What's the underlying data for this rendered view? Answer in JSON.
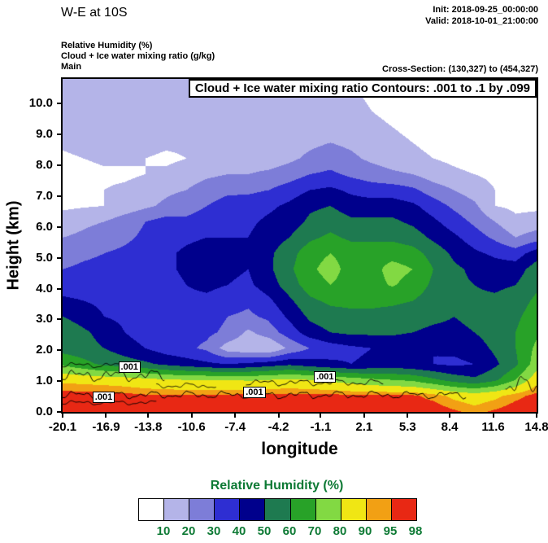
{
  "header": {
    "title": "W-E at 10S",
    "init": "Init: 2018-09-25_00:00:00",
    "valid": "Valid: 2018-10-01_21:00:00",
    "field_line1": "Relative Humidity  (%)",
    "field_line2": "Cloud + Ice water mixing ratio  (g/kg)",
    "field_line3": "Main",
    "cross_section": "Cross-Section: (130,327) to (454,327)"
  },
  "annotation": "Cloud + Ice water mixing ratio Contours: .001 to .1 by .099",
  "axes": {
    "ylabel": "Height (km)",
    "xlabel": "longitude",
    "yticks": [
      "0.0",
      "1.0",
      "2.0",
      "3.0",
      "4.0",
      "5.0",
      "6.0",
      "7.0",
      "8.0",
      "9.0",
      "10.0"
    ],
    "ytick_values": [
      0,
      1,
      2,
      3,
      4,
      5,
      6,
      7,
      8,
      9,
      10
    ],
    "ymax": 10.8,
    "xticks": [
      "-20.1",
      "-16.9",
      "-13.8",
      "-10.6",
      "-7.4",
      "-4.2",
      "-1.1",
      "2.1",
      "5.3",
      "8.4",
      "11.6",
      "14.8"
    ],
    "xtick_values": [
      -20.1,
      -16.9,
      -13.8,
      -10.6,
      -7.4,
      -4.2,
      -1.1,
      2.1,
      5.3,
      8.4,
      11.6,
      14.8
    ],
    "xmin": -20.1,
    "xmax": 14.8
  },
  "colorbar": {
    "title": "Relative Humidity  (%)",
    "labels": [
      "10",
      "20",
      "30",
      "40",
      "50",
      "60",
      "70",
      "80",
      "90",
      "95",
      "98"
    ],
    "colors": [
      "#ffffff",
      "#b4b4e8",
      "#7d7dd8",
      "#2e2ed2",
      "#00008c",
      "#1e7a50",
      "#28a228",
      "#82d943",
      "#f0e614",
      "#f2a014",
      "#e82814"
    ],
    "text_color": "#0e7a35"
  },
  "chart_data": {
    "type": "heatmap",
    "title": "W-E cross-section at 10S: Relative Humidity (%) shading with Cloud + Ice water mixing ratio contours .001 to .1 by .099 g/kg",
    "xlabel": "longitude",
    "ylabel": "Height (km)",
    "x": [
      -20.1,
      -18.58,
      -17.07,
      -15.55,
      -14.03,
      -12.52,
      -11.0,
      -9.49,
      -7.97,
      -6.45,
      -4.94,
      -3.42,
      -1.9,
      -0.39,
      1.13,
      2.64,
      4.16,
      5.68,
      7.19,
      8.71,
      10.23,
      11.74,
      13.26,
      14.8
    ],
    "heights_km": [
      0,
      0.51,
      1.03,
      1.54,
      2.06,
      2.57,
      3.09,
      3.6,
      4.11,
      4.63,
      5.14,
      5.66,
      6.17,
      6.69,
      7.2,
      7.71,
      8.23,
      8.74,
      9.26,
      9.77,
      10.29,
      10.8
    ],
    "rh_levels": [
      10,
      20,
      30,
      40,
      50,
      60,
      70,
      80,
      90,
      95,
      98
    ],
    "rh_colors": [
      "#ffffff",
      "#b4b4e8",
      "#7d7dd8",
      "#2e2ed2",
      "#00008c",
      "#1e7a50",
      "#28a228",
      "#82d943",
      "#f0e614",
      "#f2a014",
      "#e82814"
    ],
    "rh_percent": [
      [
        99,
        99,
        99,
        99,
        99,
        99,
        99,
        99,
        99,
        99,
        99,
        99,
        99,
        99,
        99,
        99,
        99,
        99,
        99,
        96,
        93,
        96,
        99,
        99
      ],
      [
        98,
        98,
        98,
        97,
        96,
        96,
        96,
        96,
        96,
        97,
        97,
        97,
        97,
        97,
        96,
        96,
        96,
        96,
        93,
        88,
        85,
        88,
        93,
        97
      ],
      [
        88,
        87,
        86,
        85,
        83,
        81,
        80,
        80,
        80,
        79,
        80,
        82,
        80,
        78,
        75,
        72,
        70,
        68,
        62,
        56,
        52,
        58,
        70,
        86
      ],
      [
        68,
        63,
        58,
        55,
        52,
        48,
        45,
        42,
        40,
        42,
        45,
        48,
        45,
        42,
        40,
        42,
        44,
        42,
        40,
        38,
        40,
        48,
        58,
        75
      ],
      [
        56,
        54,
        50,
        45,
        40,
        35,
        32,
        28,
        15,
        12,
        10,
        22,
        30,
        35,
        38,
        40,
        42,
        40,
        40,
        42,
        45,
        52,
        60,
        72
      ],
      [
        58,
        52,
        46,
        40,
        35,
        32,
        33,
        32,
        28,
        18,
        25,
        35,
        45,
        50,
        52,
        52,
        52,
        50,
        48,
        48,
        50,
        55,
        60,
        68
      ],
      [
        50,
        45,
        40,
        38,
        36,
        34,
        35,
        34,
        30,
        28,
        32,
        42,
        52,
        56,
        58,
        58,
        56,
        54,
        52,
        50,
        52,
        55,
        58,
        65
      ],
      [
        42,
        40,
        38,
        36,
        36,
        36,
        38,
        38,
        35,
        32,
        38,
        48,
        58,
        62,
        62,
        62,
        62,
        60,
        55,
        52,
        52,
        52,
        55,
        62
      ],
      [
        35,
        35,
        35,
        34,
        35,
        36,
        40,
        42,
        40,
        38,
        45,
        55,
        65,
        70,
        66,
        66,
        71,
        66,
        58,
        52,
        50,
        48,
        50,
        58
      ],
      [
        30,
        32,
        33,
        34,
        36,
        38,
        42,
        45,
        42,
        40,
        48,
        58,
        68,
        74,
        66,
        66,
        74,
        70,
        60,
        52,
        48,
        45,
        45,
        55
      ],
      [
        25,
        28,
        30,
        32,
        35,
        38,
        42,
        45,
        44,
        42,
        48,
        56,
        66,
        70,
        66,
        66,
        66,
        64,
        56,
        48,
        42,
        38,
        35,
        45
      ],
      [
        20,
        22,
        25,
        28,
        32,
        36,
        38,
        40,
        40,
        40,
        45,
        50,
        58,
        62,
        58,
        58,
        58,
        55,
        48,
        42,
        35,
        28,
        20,
        25
      ],
      [
        15,
        18,
        20,
        25,
        30,
        34,
        32,
        35,
        38,
        38,
        42,
        45,
        52,
        56,
        52,
        52,
        52,
        48,
        42,
        35,
        28,
        20,
        12,
        14
      ],
      [
        8,
        9,
        10,
        14,
        18,
        22,
        26,
        30,
        34,
        35,
        38,
        42,
        48,
        50,
        45,
        45,
        45,
        42,
        35,
        28,
        22,
        10,
        8,
        8
      ],
      [
        8,
        8,
        10,
        12,
        15,
        18,
        20,
        25,
        28,
        28,
        30,
        35,
        40,
        42,
        38,
        35,
        35,
        32,
        25,
        20,
        15,
        10,
        8,
        8
      ],
      [
        6,
        6,
        8,
        8,
        10,
        12,
        15,
        18,
        20,
        20,
        22,
        25,
        30,
        32,
        28,
        25,
        22,
        20,
        15,
        12,
        10,
        8,
        6,
        6
      ],
      [
        8,
        10,
        12,
        12,
        10,
        8,
        10,
        12,
        14,
        15,
        15,
        18,
        22,
        25,
        22,
        18,
        15,
        12,
        10,
        8,
        6,
        5,
        4,
        4
      ],
      [
        12,
        14,
        15,
        15,
        14,
        12,
        12,
        13,
        14,
        15,
        15,
        16,
        18,
        20,
        18,
        15,
        12,
        10,
        8,
        6,
        5,
        4,
        4,
        4
      ],
      [
        14,
        15,
        16,
        16,
        15,
        14,
        13,
        14,
        15,
        15,
        14,
        14,
        15,
        16,
        14,
        12,
        10,
        8,
        6,
        5,
        4,
        4,
        4,
        4
      ],
      [
        15,
        16,
        16,
        15,
        15,
        14,
        13,
        13,
        14,
        14,
        13,
        12,
        13,
        14,
        12,
        10,
        8,
        6,
        5,
        4,
        4,
        4,
        4,
        4
      ],
      [
        14,
        15,
        15,
        14,
        14,
        13,
        12,
        12,
        13,
        13,
        12,
        12,
        12,
        12,
        11,
        9,
        7,
        5,
        4,
        4,
        4,
        4,
        4,
        4
      ],
      [
        13,
        14,
        14,
        13,
        13,
        12,
        12,
        12,
        12,
        12,
        11,
        11,
        11,
        11,
        10,
        8,
        6,
        5,
        4,
        4,
        4,
        4,
        4,
        4
      ]
    ],
    "cloud_contours": {
      "value_gpkg": 0.001,
      "label": ".001",
      "segments": [
        {
          "x0": -20.1,
          "x1": -12.6,
          "h": 1.18,
          "amp": 0.22
        },
        {
          "x0": -20.1,
          "x1": 9.6,
          "h": 0.55,
          "amp": 0.15
        },
        {
          "x0": -20.1,
          "x1": -13.2,
          "h": 0.3,
          "amp": 0.08
        },
        {
          "x0": -20.1,
          "x1": -14.6,
          "h": 1.52,
          "amp": 0.1
        },
        {
          "x0": -13.2,
          "x1": -8.8,
          "h": 0.85,
          "amp": 0.1
        },
        {
          "x0": -6.6,
          "x1": 3.5,
          "h": 0.95,
          "amp": 0.12
        },
        {
          "x0": 12.5,
          "x1": 14.8,
          "h": 0.85,
          "amp": 0.35
        }
      ],
      "labels": [
        {
          "text": ".001",
          "x": -15.1,
          "h": 1.42
        },
        {
          "text": ".001",
          "x": -17.0,
          "h": 0.45
        },
        {
          "text": ".001",
          "x": -5.9,
          "h": 0.6
        },
        {
          "text": ".001",
          "x": -0.7,
          "h": 1.1
        }
      ]
    }
  }
}
